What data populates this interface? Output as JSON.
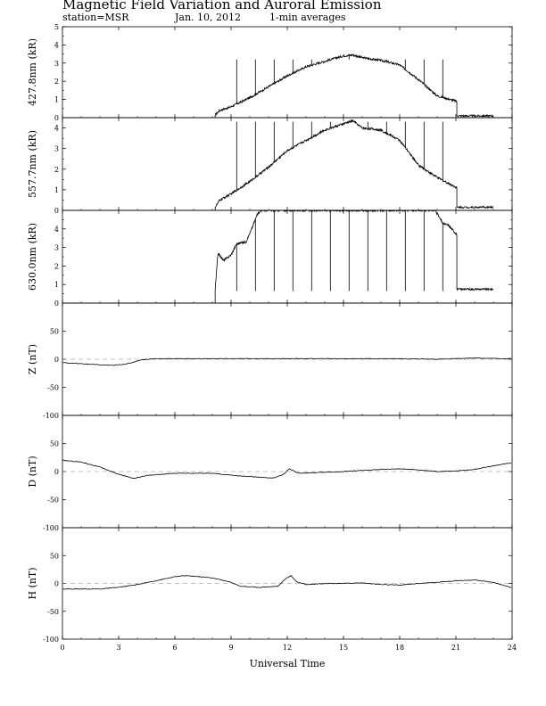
{
  "header": {
    "title": "Magnetic Field Variation and Auroral Emission",
    "station": "station=MSR",
    "date": "Jan. 10, 2012",
    "averaging": "1-min averages"
  },
  "chart_data": [
    {
      "type": "line",
      "panel": "427.8nm",
      "ylabel": "427.8nm (kR)",
      "ylim": [
        0,
        5
      ],
      "yticks": [
        0,
        1,
        2,
        3,
        4,
        5
      ],
      "baseline": null,
      "grid": false,
      "data_start_hour": 8.15,
      "data_end_hour": 21.05,
      "x": [
        8.15,
        8.4,
        9,
        10,
        11,
        12,
        13,
        14,
        15,
        15.5,
        16,
        17,
        18,
        19,
        20,
        21.05
      ],
      "y": [
        0.15,
        0.4,
        0.6,
        1.1,
        1.7,
        2.3,
        2.8,
        3.1,
        3.4,
        3.45,
        3.3,
        3.15,
        2.9,
        2.1,
        1.2,
        0.9
      ],
      "tail": {
        "x": [
          21.05,
          23.0
        ],
        "y": [
          0.1,
          0.1
        ]
      },
      "spikes": {
        "hours": [
          9.3,
          10.3,
          11.3,
          12.3,
          13.3,
          14.3,
          15.3,
          16.3,
          17.3,
          18.3,
          19.3,
          20.3
        ],
        "top": 3.2
      }
    },
    {
      "type": "line",
      "panel": "557.7nm",
      "ylabel": "557.7nm (kR)",
      "ylim": [
        0,
        4.5
      ],
      "yticks": [
        0,
        1,
        2,
        3,
        4
      ],
      "baseline": null,
      "grid": false,
      "data_start_hour": 8.15,
      "data_end_hour": 21.05,
      "x": [
        8.15,
        8.4,
        9,
        10,
        11,
        12,
        13,
        14,
        15,
        15.5,
        16,
        17,
        18,
        19,
        20,
        21.05
      ],
      "y": [
        0.15,
        0.5,
        0.8,
        1.4,
        2.1,
        2.9,
        3.4,
        3.9,
        4.2,
        4.35,
        4.0,
        3.9,
        3.4,
        2.2,
        1.6,
        1.1
      ],
      "tail": {
        "x": [
          21.05,
          23.0
        ],
        "y": [
          0.15,
          0.15
        ]
      },
      "spikes": {
        "hours": [
          9.3,
          10.3,
          11.3,
          12.3,
          13.3,
          14.3,
          15.3,
          16.3,
          17.3,
          18.3,
          19.3,
          20.3
        ],
        "top": 4.3
      }
    },
    {
      "type": "line",
      "panel": "630.0nm",
      "ylabel": "630.0nm (kR)",
      "ylim": [
        0,
        5
      ],
      "yticks": [
        0,
        1,
        2,
        3,
        4
      ],
      "baseline": null,
      "grid": false,
      "data_start_hour": 8.15,
      "data_end_hour": 21.05,
      "x": [
        8.15,
        8.3,
        8.6,
        9,
        9.3,
        9.8,
        10.1,
        10.4,
        10.6,
        19.9,
        20.3,
        20.6,
        21.05
      ],
      "y": [
        0.7,
        2.7,
        2.3,
        2.6,
        3.2,
        3.3,
        4.0,
        4.8,
        5.0,
        5.0,
        4.3,
        4.2,
        3.7
      ],
      "tail": {
        "x": [
          21.05,
          23.0
        ],
        "y": [
          0.75,
          0.75
        ]
      },
      "spikes": {
        "hours": [
          9.3,
          10.3,
          11.3,
          12.3,
          13.3,
          14.3,
          15.3,
          16.3,
          17.3,
          18.3,
          19.3,
          20.3
        ],
        "low": 0.65
      }
    },
    {
      "type": "line",
      "panel": "Z",
      "ylabel": "Z (nT)",
      "ylim": [
        -100,
        100
      ],
      "yticks": [
        -100,
        -50,
        0,
        50
      ],
      "baseline": 0,
      "grid": false,
      "x": [
        0,
        1,
        2,
        2.7,
        3.5,
        4.2,
        5,
        6,
        8,
        10,
        12,
        14,
        16,
        18,
        20,
        22,
        24
      ],
      "y": [
        -6,
        -8,
        -10,
        -11,
        -8,
        -1,
        1,
        1,
        1,
        1,
        1,
        1,
        1,
        1,
        0,
        2,
        1
      ]
    },
    {
      "type": "line",
      "panel": "D",
      "ylabel": "D (nT)",
      "ylim": [
        -100,
        100
      ],
      "yticks": [
        -100,
        -50,
        0,
        50
      ],
      "baseline": 0,
      "grid": false,
      "x": [
        0,
        1,
        2,
        3,
        3.8,
        4.5,
        6,
        8,
        9.5,
        10.5,
        11.2,
        11.8,
        12.1,
        12.6,
        13.5,
        15,
        16,
        17,
        18,
        19,
        20,
        21,
        22,
        23,
        24
      ],
      "y": [
        20,
        17,
        8,
        -5,
        -12,
        -7,
        -3,
        -3,
        -8,
        -10,
        -12,
        -5,
        5,
        -3,
        -2,
        0,
        2,
        4,
        5,
        3,
        0,
        1,
        4,
        10,
        16
      ]
    },
    {
      "type": "line",
      "panel": "H",
      "ylabel": "H (nT)",
      "ylim": [
        -100,
        100
      ],
      "yticks": [
        -100,
        -50,
        0,
        50
      ],
      "baseline": 0,
      "grid": false,
      "x": [
        0,
        1,
        2,
        3,
        4,
        5,
        6,
        6.5,
        7,
        8,
        9,
        9.5,
        10.5,
        11.5,
        11.9,
        12.2,
        12.5,
        13,
        14,
        15,
        16,
        17,
        18,
        19,
        20,
        21,
        22,
        23,
        24
      ],
      "y": [
        -10,
        -10,
        -10,
        -7,
        -2,
        5,
        12,
        14,
        13,
        10,
        2,
        -5,
        -7,
        -5,
        8,
        14,
        3,
        -2,
        0,
        0,
        1,
        -2,
        -3,
        0,
        2,
        5,
        6,
        2,
        -8
      ]
    }
  ],
  "xaxis": {
    "label": "Universal Time",
    "xlim": [
      0,
      24
    ],
    "ticks": [
      0,
      3,
      6,
      9,
      12,
      15,
      18,
      21,
      24
    ],
    "tick_labels": [
      "0",
      "3",
      "6",
      "9",
      "12",
      "15",
      "18",
      "21",
      "24"
    ]
  }
}
